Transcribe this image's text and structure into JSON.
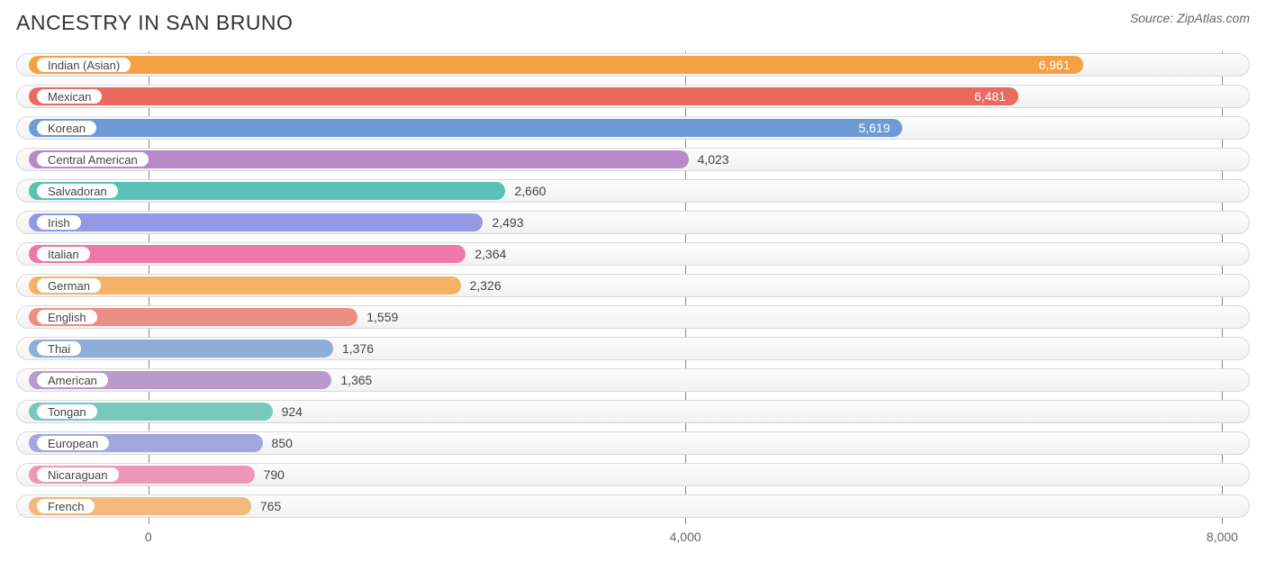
{
  "header": {
    "title": "ANCESTRY IN SAN BRUNO",
    "source": "Source: ZipAtlas.com"
  },
  "chart": {
    "type": "bar",
    "orientation": "horizontal",
    "x_min": -985,
    "x_max": 8205,
    "ticks": [
      {
        "value": 0,
        "label": "0"
      },
      {
        "value": 4000,
        "label": "4,000"
      },
      {
        "value": 8000,
        "label": "8,000"
      }
    ],
    "track_bg": "#f4f4f4",
    "track_border": "#d9d9d9",
    "label_text_color": "#444444",
    "value_text_color": "#444444",
    "value_inside_text_color": "#ffffff",
    "bars": [
      {
        "label": "Indian (Asian)",
        "value": 6961,
        "value_text": "6,961",
        "color": "#f6a044",
        "value_inside": true
      },
      {
        "label": "Mexican",
        "value": 6481,
        "value_text": "6,481",
        "color": "#ea6a60",
        "value_inside": true
      },
      {
        "label": "Korean",
        "value": 5619,
        "value_text": "5,619",
        "color": "#6e9bd6",
        "value_inside": true
      },
      {
        "label": "Central American",
        "value": 4023,
        "value_text": "4,023",
        "color": "#b889c8",
        "value_inside": false
      },
      {
        "label": "Salvadoran",
        "value": 2660,
        "value_text": "2,660",
        "color": "#5bc1b6",
        "value_inside": false
      },
      {
        "label": "Irish",
        "value": 2493,
        "value_text": "2,493",
        "color": "#9399e2",
        "value_inside": false
      },
      {
        "label": "Italian",
        "value": 2364,
        "value_text": "2,364",
        "color": "#ee79a8",
        "value_inside": false
      },
      {
        "label": "German",
        "value": 2326,
        "value_text": "2,326",
        "color": "#f3b266",
        "value_inside": false
      },
      {
        "label": "English",
        "value": 1559,
        "value_text": "1,559",
        "color": "#ed8e84",
        "value_inside": false
      },
      {
        "label": "Thai",
        "value": 1376,
        "value_text": "1,376",
        "color": "#8daed8",
        "value_inside": false
      },
      {
        "label": "American",
        "value": 1365,
        "value_text": "1,365",
        "color": "#b99bc9",
        "value_inside": false
      },
      {
        "label": "Tongan",
        "value": 924,
        "value_text": "924",
        "color": "#77c9c0",
        "value_inside": false
      },
      {
        "label": "European",
        "value": 850,
        "value_text": "850",
        "color": "#a2a6df",
        "value_inside": false
      },
      {
        "label": "Nicaraguan",
        "value": 790,
        "value_text": "790",
        "color": "#ef97b8",
        "value_inside": false
      },
      {
        "label": "French",
        "value": 765,
        "value_text": "765",
        "color": "#f3b97a",
        "value_inside": false
      }
    ]
  }
}
